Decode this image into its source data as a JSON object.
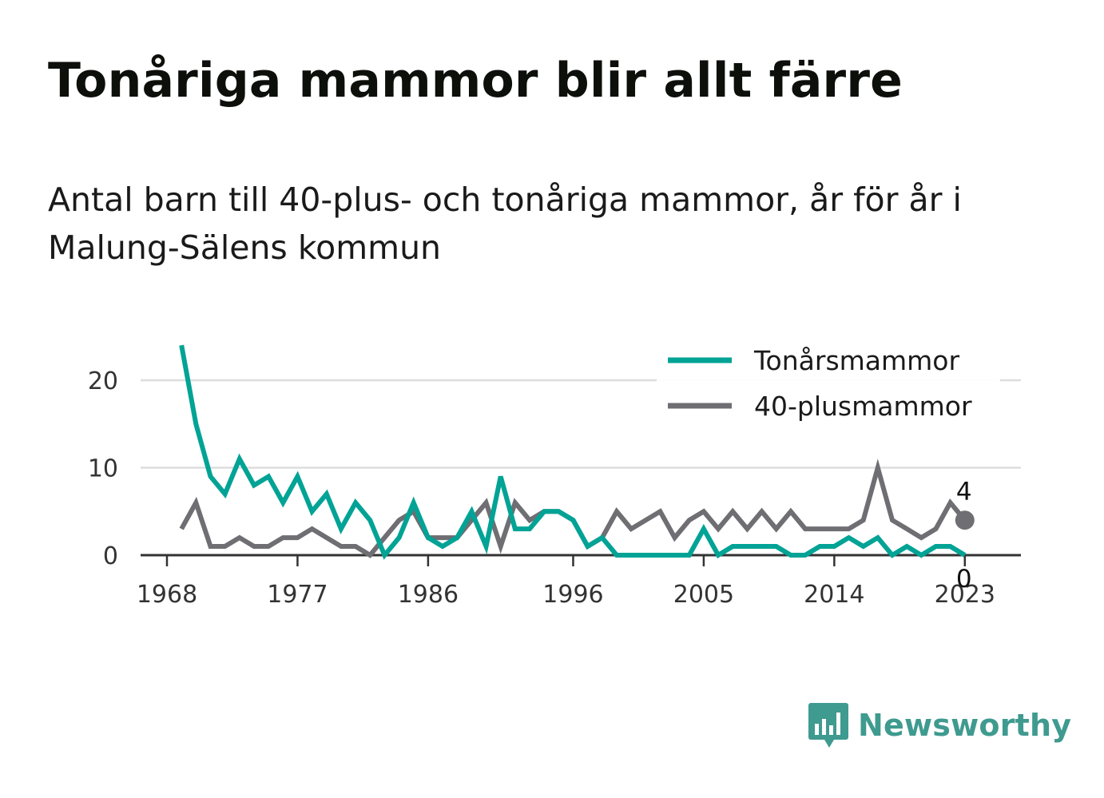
{
  "title": "Tonåriga mammor blir allt färre",
  "subtitle": "Antal barn till 40-plus- och tonåriga mammor, år för år i Malung-Sälens kommun",
  "brand": {
    "name": "Newsworthy",
    "icon": "newsworthy-logo-icon",
    "color": "#3f9a8f"
  },
  "chart_data": {
    "type": "line",
    "x": [
      1969,
      1970,
      1971,
      1972,
      1973,
      1974,
      1975,
      1976,
      1977,
      1978,
      1979,
      1980,
      1981,
      1982,
      1983,
      1984,
      1985,
      1986,
      1987,
      1988,
      1989,
      1990,
      1991,
      1992,
      1993,
      1994,
      1995,
      1996,
      1997,
      1998,
      1999,
      2000,
      2001,
      2002,
      2003,
      2004,
      2005,
      2006,
      2007,
      2008,
      2009,
      2010,
      2011,
      2012,
      2013,
      2014,
      2015,
      2016,
      2017,
      2018,
      2019,
      2020,
      2021,
      2022,
      2023
    ],
    "series": [
      {
        "name": "Tonårsmammor",
        "color": "#00a395",
        "values": [
          24,
          15,
          9,
          7,
          11,
          8,
          9,
          6,
          9,
          5,
          7,
          3,
          6,
          4,
          0,
          2,
          6,
          2,
          1,
          2,
          5,
          1,
          9,
          3,
          3,
          5,
          5,
          4,
          1,
          2,
          0,
          0,
          0,
          0,
          0,
          0,
          3,
          0,
          1,
          1,
          1,
          1,
          0,
          0,
          1,
          1,
          2,
          1,
          2,
          0,
          1,
          0,
          1,
          1,
          0
        ]
      },
      {
        "name": "40-plusmammor",
        "color": "#6e6e73",
        "values": [
          3,
          6,
          1,
          1,
          2,
          1,
          1,
          2,
          2,
          3,
          2,
          1,
          1,
          0,
          2,
          4,
          5,
          2,
          2,
          2,
          4,
          6,
          1,
          6,
          4,
          5,
          5,
          4,
          1,
          2,
          5,
          3,
          4,
          5,
          2,
          4,
          5,
          3,
          5,
          3,
          5,
          3,
          5,
          3,
          3,
          3,
          3,
          4,
          10,
          4,
          3,
          2,
          3,
          6,
          4
        ]
      }
    ],
    "end_labels": [
      "0",
      "4"
    ],
    "xticks": [
      "1968",
      "1977",
      "1986",
      "1996",
      "2005",
      "2014",
      "2023"
    ],
    "yticks": [
      "0",
      "10",
      "20"
    ],
    "xlim": [
      1968,
      2024
    ],
    "ylim": [
      0,
      24
    ],
    "grid": "horizontal",
    "legend_placement": "top-right",
    "colors": {
      "teal": "#00a395",
      "gray": "#6e6e73",
      "grid": "#dddddd",
      "axis": "#333333"
    }
  }
}
